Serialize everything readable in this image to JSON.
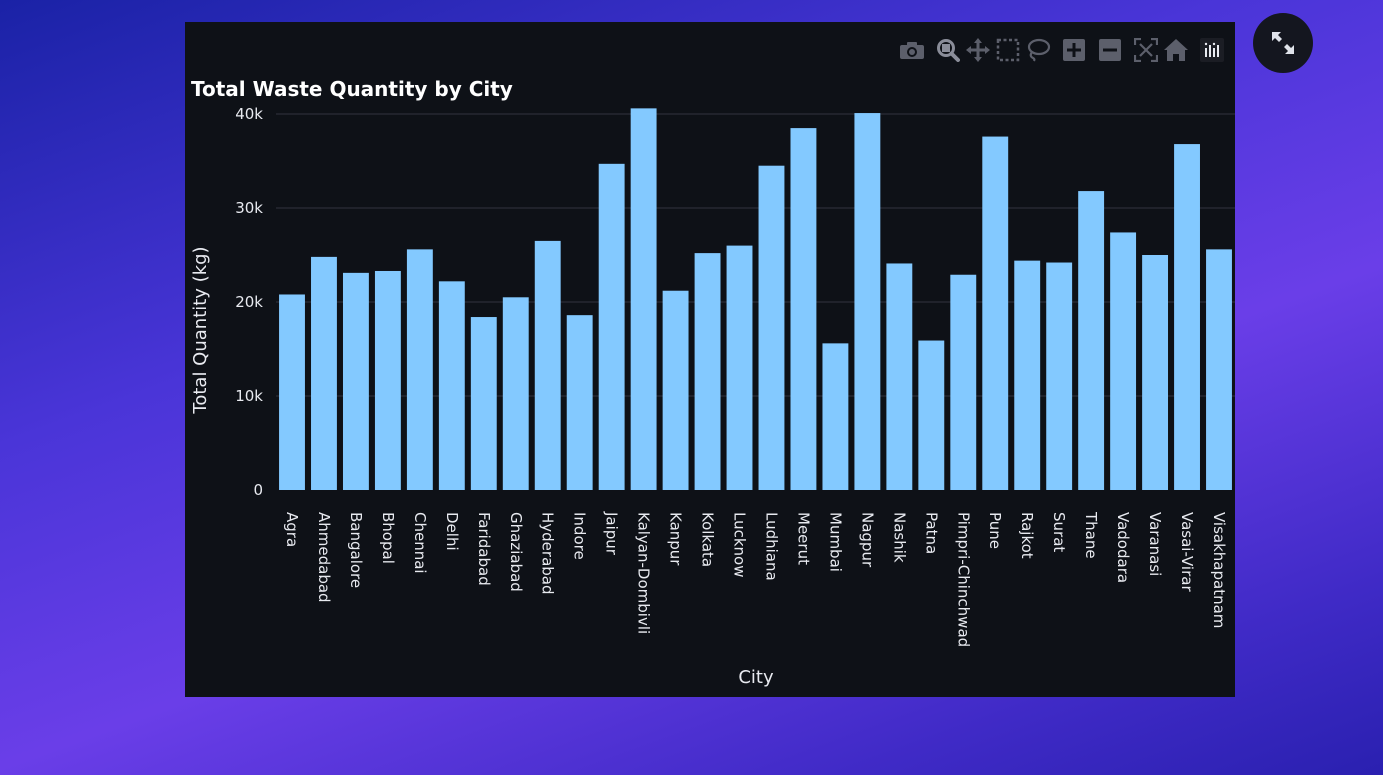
{
  "modebar": {
    "buttons": [
      {
        "name": "camera-icon"
      },
      {
        "name": "zoom-icon"
      },
      {
        "name": "pan-icon"
      },
      {
        "name": "box-select-icon"
      },
      {
        "name": "lasso-select-icon"
      },
      {
        "name": "zoom-in-icon"
      },
      {
        "name": "zoom-out-icon"
      },
      {
        "name": "autoscale-icon"
      },
      {
        "name": "reset-axes-icon"
      },
      {
        "name": "plotly-logo-icon"
      }
    ]
  },
  "expand_button": {
    "icon": "expand-icon"
  },
  "colors": {
    "bar": "#83c9ff",
    "plot_bg": "#0e1117",
    "grid": "#31333f",
    "text": "#e8eaf0"
  },
  "chart_data": {
    "type": "bar",
    "title": "Total Waste Quantity by City",
    "xlabel": "City",
    "ylabel": "Total Quantity (kg)",
    "ylim": [
      0,
      45000
    ],
    "yticks": [
      0,
      10000,
      20000,
      30000,
      40000
    ],
    "ytick_labels": [
      "0",
      "10k",
      "20k",
      "30k",
      "40k"
    ],
    "grid": true,
    "categories": [
      "Agra",
      "Ahmedabad",
      "Bangalore",
      "Bhopal",
      "Chennai",
      "Delhi",
      "Faridabad",
      "Ghaziabad",
      "Hyderabad",
      "Indore",
      "Jaipur",
      "Kalyan-Dombivli",
      "Kanpur",
      "Kolkata",
      "Lucknow",
      "Ludhiana",
      "Meerut",
      "Mumbai",
      "Nagpur",
      "Nashik",
      "Patna",
      "Pimpri-Chinchwad",
      "Pune",
      "Rajkot",
      "Surat",
      "Thane",
      "Vadodara",
      "Varanasi",
      "Vasai-Virar",
      "Visakhapatnam"
    ],
    "values": [
      20800,
      24800,
      23100,
      23300,
      25600,
      22200,
      18400,
      20500,
      26500,
      18600,
      34700,
      40600,
      21200,
      25200,
      26000,
      34500,
      38500,
      15600,
      40100,
      24100,
      15900,
      22900,
      37600,
      24400,
      24200,
      31800,
      27400,
      25000,
      36800,
      25600
    ]
  }
}
